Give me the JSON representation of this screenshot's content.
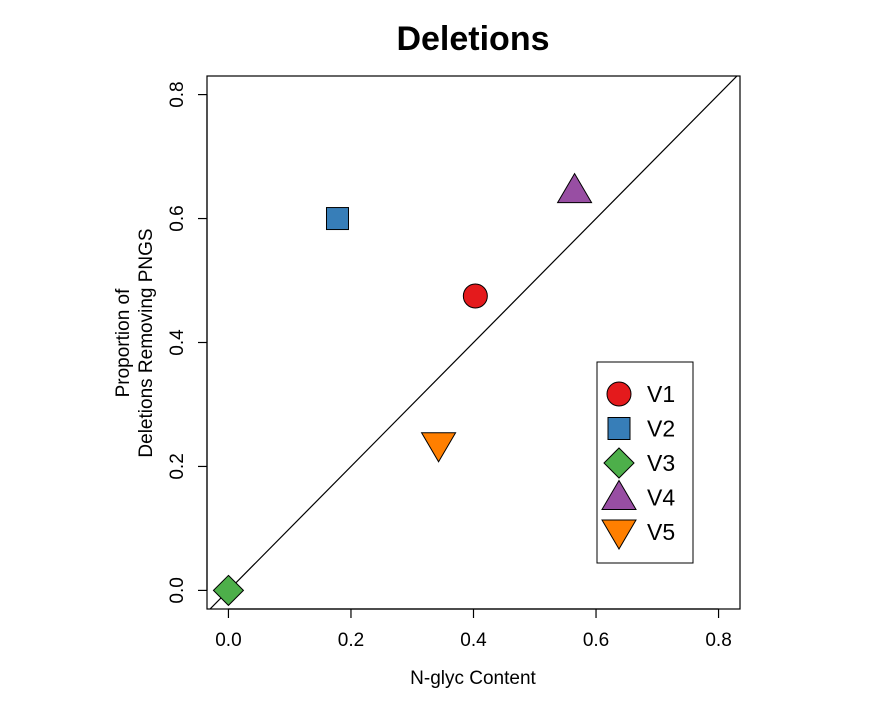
{
  "chart_data": {
    "type": "scatter",
    "title": "Deletions",
    "xlabel": "N-glyc Content",
    "ylabel_lines": [
      "Proportion of",
      "Deletions Removing PNGS"
    ],
    "xlim": [
      -0.035,
      0.835
    ],
    "ylim": [
      -0.03,
      0.83
    ],
    "xticks": [
      0.0,
      0.2,
      0.4,
      0.6,
      0.8
    ],
    "xtick_labels": [
      "0.0",
      "0.2",
      "0.4",
      "0.6",
      "0.8"
    ],
    "yticks": [
      0.0,
      0.2,
      0.4,
      0.6,
      0.8
    ],
    "ytick_labels": [
      "0.0",
      "0.2",
      "0.4",
      "0.6",
      "0.8"
    ],
    "reference_line": "y = x",
    "legend_position": "lower-right",
    "series": [
      {
        "name": "V1",
        "shape": "circle",
        "color": "#E41A1C",
        "x": 0.403,
        "y": 0.475
      },
      {
        "name": "V2",
        "shape": "square",
        "color": "#377EB8",
        "x": 0.178,
        "y": 0.6
      },
      {
        "name": "V3",
        "shape": "diamond",
        "color": "#4DAF4A",
        "x": 0.0,
        "y": 0.0
      },
      {
        "name": "V4",
        "shape": "triangle-up",
        "color": "#984EA3",
        "x": 0.565,
        "y": 0.645
      },
      {
        "name": "V5",
        "shape": "triangle-down",
        "color": "#FF7F00",
        "x": 0.343,
        "y": 0.235
      }
    ]
  }
}
